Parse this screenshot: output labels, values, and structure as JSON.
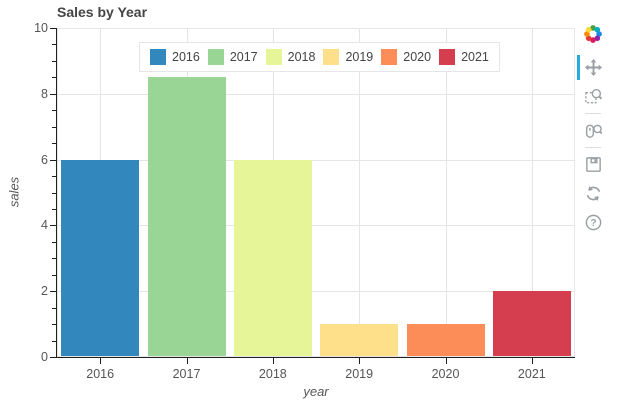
{
  "chart_data": {
    "type": "bar",
    "title": "Sales by Year",
    "xlabel": "year",
    "ylabel": "sales",
    "categories": [
      "2016",
      "2017",
      "2018",
      "2019",
      "2020",
      "2021"
    ],
    "values": [
      6,
      8.5,
      6,
      1,
      1,
      2
    ],
    "colors": [
      "#3288bd",
      "#99d594",
      "#e6f598",
      "#fee08b",
      "#fc8d59",
      "#d53e4f"
    ],
    "ylim": [
      0,
      10
    ],
    "yticks": [
      0,
      2,
      4,
      6,
      8,
      10
    ],
    "minor_tick_step": 0.5,
    "grid": true,
    "bar_width_fraction": 0.9,
    "legend_position": "top-center",
    "legend_orientation": "horizontal"
  },
  "legend": {
    "entries": [
      "2016",
      "2017",
      "2018",
      "2019",
      "2020",
      "2021"
    ]
  },
  "toolbar": {
    "logo": "bokeh-logo",
    "active_tool": "pan",
    "active_color": "#26aae1",
    "tools": [
      "pan",
      "box-zoom",
      "wheel-zoom",
      "save",
      "reset",
      "help"
    ]
  },
  "colors": {
    "grid": "#e5e5e5",
    "outline": "#e7e7e7",
    "axis_line": "#1f1f1f",
    "tick_label": "#555555",
    "title": "#444444",
    "icon": "#9b9fa3",
    "background": "#ffffff"
  }
}
